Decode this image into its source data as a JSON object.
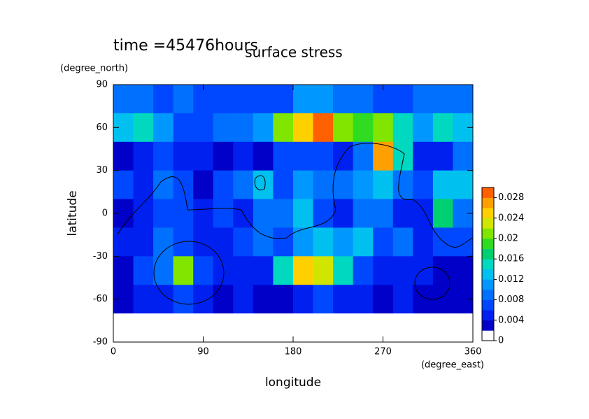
{
  "chart_data": {
    "type": "contour",
    "title": "surface stress",
    "subtitle": "time =45476hours",
    "x_label": "longitude",
    "x_unit": "(degree_east)",
    "y_label": "latitude",
    "y_unit": "(degree_north)",
    "xlim": [
      0,
      360
    ],
    "ylim": [
      -90,
      90
    ],
    "xticks": [
      0,
      90,
      180,
      270,
      360
    ],
    "yticks": [
      -90,
      -60,
      -30,
      0,
      30,
      60,
      90
    ],
    "x": [
      10,
      30,
      50,
      70,
      90,
      110,
      130,
      150,
      170,
      190,
      210,
      230,
      250,
      270,
      290,
      310,
      330,
      350
    ],
    "y": [
      80,
      60,
      40,
      20,
      0,
      -20,
      -40,
      -60,
      -80
    ],
    "z": [
      [
        0.008,
        0.008,
        0.006,
        0.008,
        0.006,
        0.006,
        0.006,
        0.006,
        0.006,
        0.01,
        0.01,
        0.008,
        0.008,
        0.006,
        0.006,
        0.008,
        0.008,
        0.008
      ],
      [
        0.012,
        0.014,
        0.01,
        0.006,
        0.006,
        0.008,
        0.008,
        0.01,
        0.02,
        0.024,
        0.028,
        0.02,
        0.018,
        0.02,
        0.014,
        0.01,
        0.014,
        0.012
      ],
      [
        0.002,
        0.004,
        0.006,
        0.004,
        0.004,
        0.002,
        0.004,
        0.002,
        0.006,
        0.006,
        0.006,
        0.004,
        0.008,
        0.026,
        0.014,
        0.004,
        0.004,
        0.008
      ],
      [
        0.006,
        0.004,
        0.008,
        0.006,
        0.002,
        0.006,
        0.008,
        0.012,
        0.006,
        0.01,
        0.008,
        0.008,
        0.01,
        0.012,
        0.008,
        0.006,
        0.012,
        0.012
      ],
      [
        0.002,
        0.004,
        0.006,
        0.006,
        0.004,
        0.006,
        0.004,
        0.008,
        0.008,
        0.012,
        0.006,
        0.004,
        0.008,
        0.008,
        0.004,
        0.004,
        0.016,
        0.008
      ],
      [
        0.004,
        0.004,
        0.008,
        0.006,
        0.004,
        0.004,
        0.006,
        0.008,
        0.006,
        0.01,
        0.012,
        0.01,
        0.012,
        0.006,
        0.008,
        0.004,
        0.006,
        0.006
      ],
      [
        0.002,
        0.006,
        0.008,
        0.02,
        0.006,
        0.004,
        0.004,
        0.004,
        0.014,
        0.024,
        0.022,
        0.014,
        0.006,
        0.004,
        0.004,
        0.004,
        0.002,
        0.002
      ],
      [
        0.002,
        0.004,
        0.004,
        0.006,
        0.004,
        0.002,
        0.004,
        0.002,
        0.002,
        0.004,
        0.006,
        0.004,
        0.004,
        0.002,
        0.004,
        0.002,
        0.002,
        0.002
      ],
      [
        0,
        0,
        0,
        0,
        0,
        0,
        0,
        0,
        0,
        0,
        0,
        0,
        0,
        0,
        0,
        0,
        0,
        0
      ]
    ],
    "clim": [
      0,
      0.03
    ],
    "colorbar_ticks": [
      0,
      0.004,
      0.008,
      0.012,
      0.016,
      0.02,
      0.024,
      0.028
    ],
    "colors": [
      "#ffffff",
      "#0000c8",
      "#0020f0",
      "#0048ff",
      "#0070ff",
      "#0098ff",
      "#00c0f0",
      "#00d8c0",
      "#00d070",
      "#30dc20",
      "#80e600",
      "#d0e600",
      "#ffd000",
      "#ffa000",
      "#ff6000"
    ]
  }
}
